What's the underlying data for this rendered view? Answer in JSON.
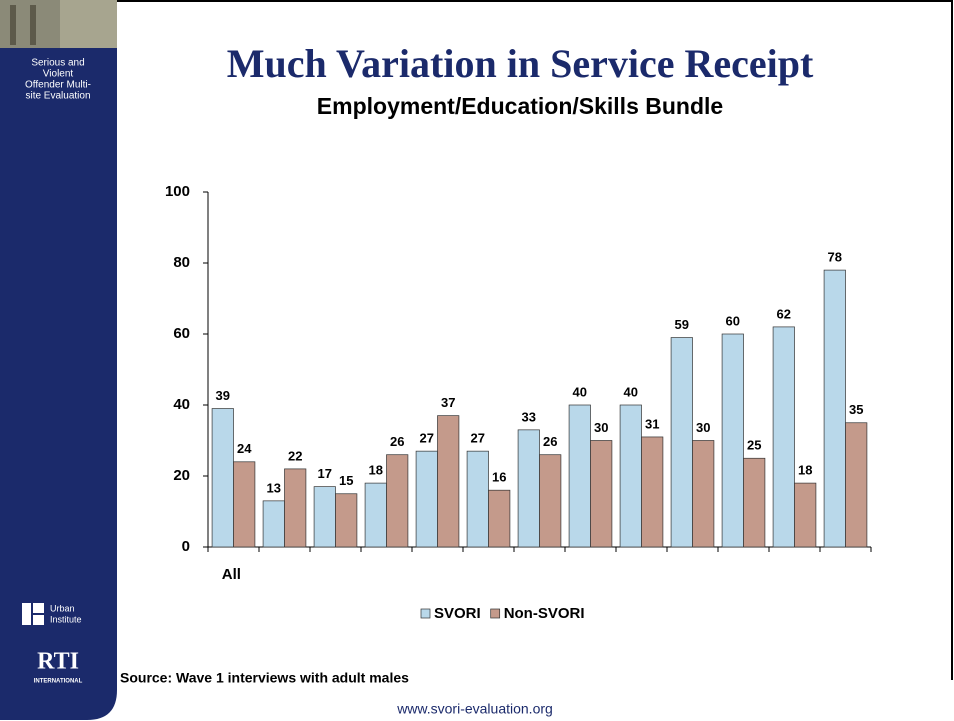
{
  "slide": {
    "sidebar_lines": [
      "Serious and",
      "Violent",
      "Offender Multi-",
      "site Evaluation"
    ],
    "urban_lines": [
      "Urban",
      "Institute"
    ],
    "rti": "RTI",
    "rti_sub": "INTERNATIONAL",
    "source": "Source: Wave 1 interviews with adult males",
    "footer": "www.svori-evaluation.org"
  },
  "chart_data": {
    "type": "bar",
    "title": "Much Variation in Service Receipt",
    "subtitle": "Employment/Education/Skills Bundle",
    "categories": [
      "All",
      null,
      null,
      null,
      null,
      null,
      null,
      null,
      null,
      null,
      null,
      null,
      null
    ],
    "series": [
      {
        "name": "SVORI",
        "color": "#b9d8ea",
        "values": [
          39,
          13,
          17,
          18,
          27,
          27,
          33,
          40,
          40,
          59,
          60,
          62,
          78
        ]
      },
      {
        "name": "Non-SVORI",
        "color": "#c49a8b",
        "values": [
          24,
          22,
          15,
          26,
          37,
          16,
          26,
          30,
          31,
          30,
          25,
          18,
          35
        ]
      }
    ],
    "ylim": [
      0,
      100
    ],
    "yticks": [
      0,
      20,
      40,
      60,
      80,
      100
    ],
    "grid": false,
    "legend": "bottom",
    "data_labels": true
  }
}
